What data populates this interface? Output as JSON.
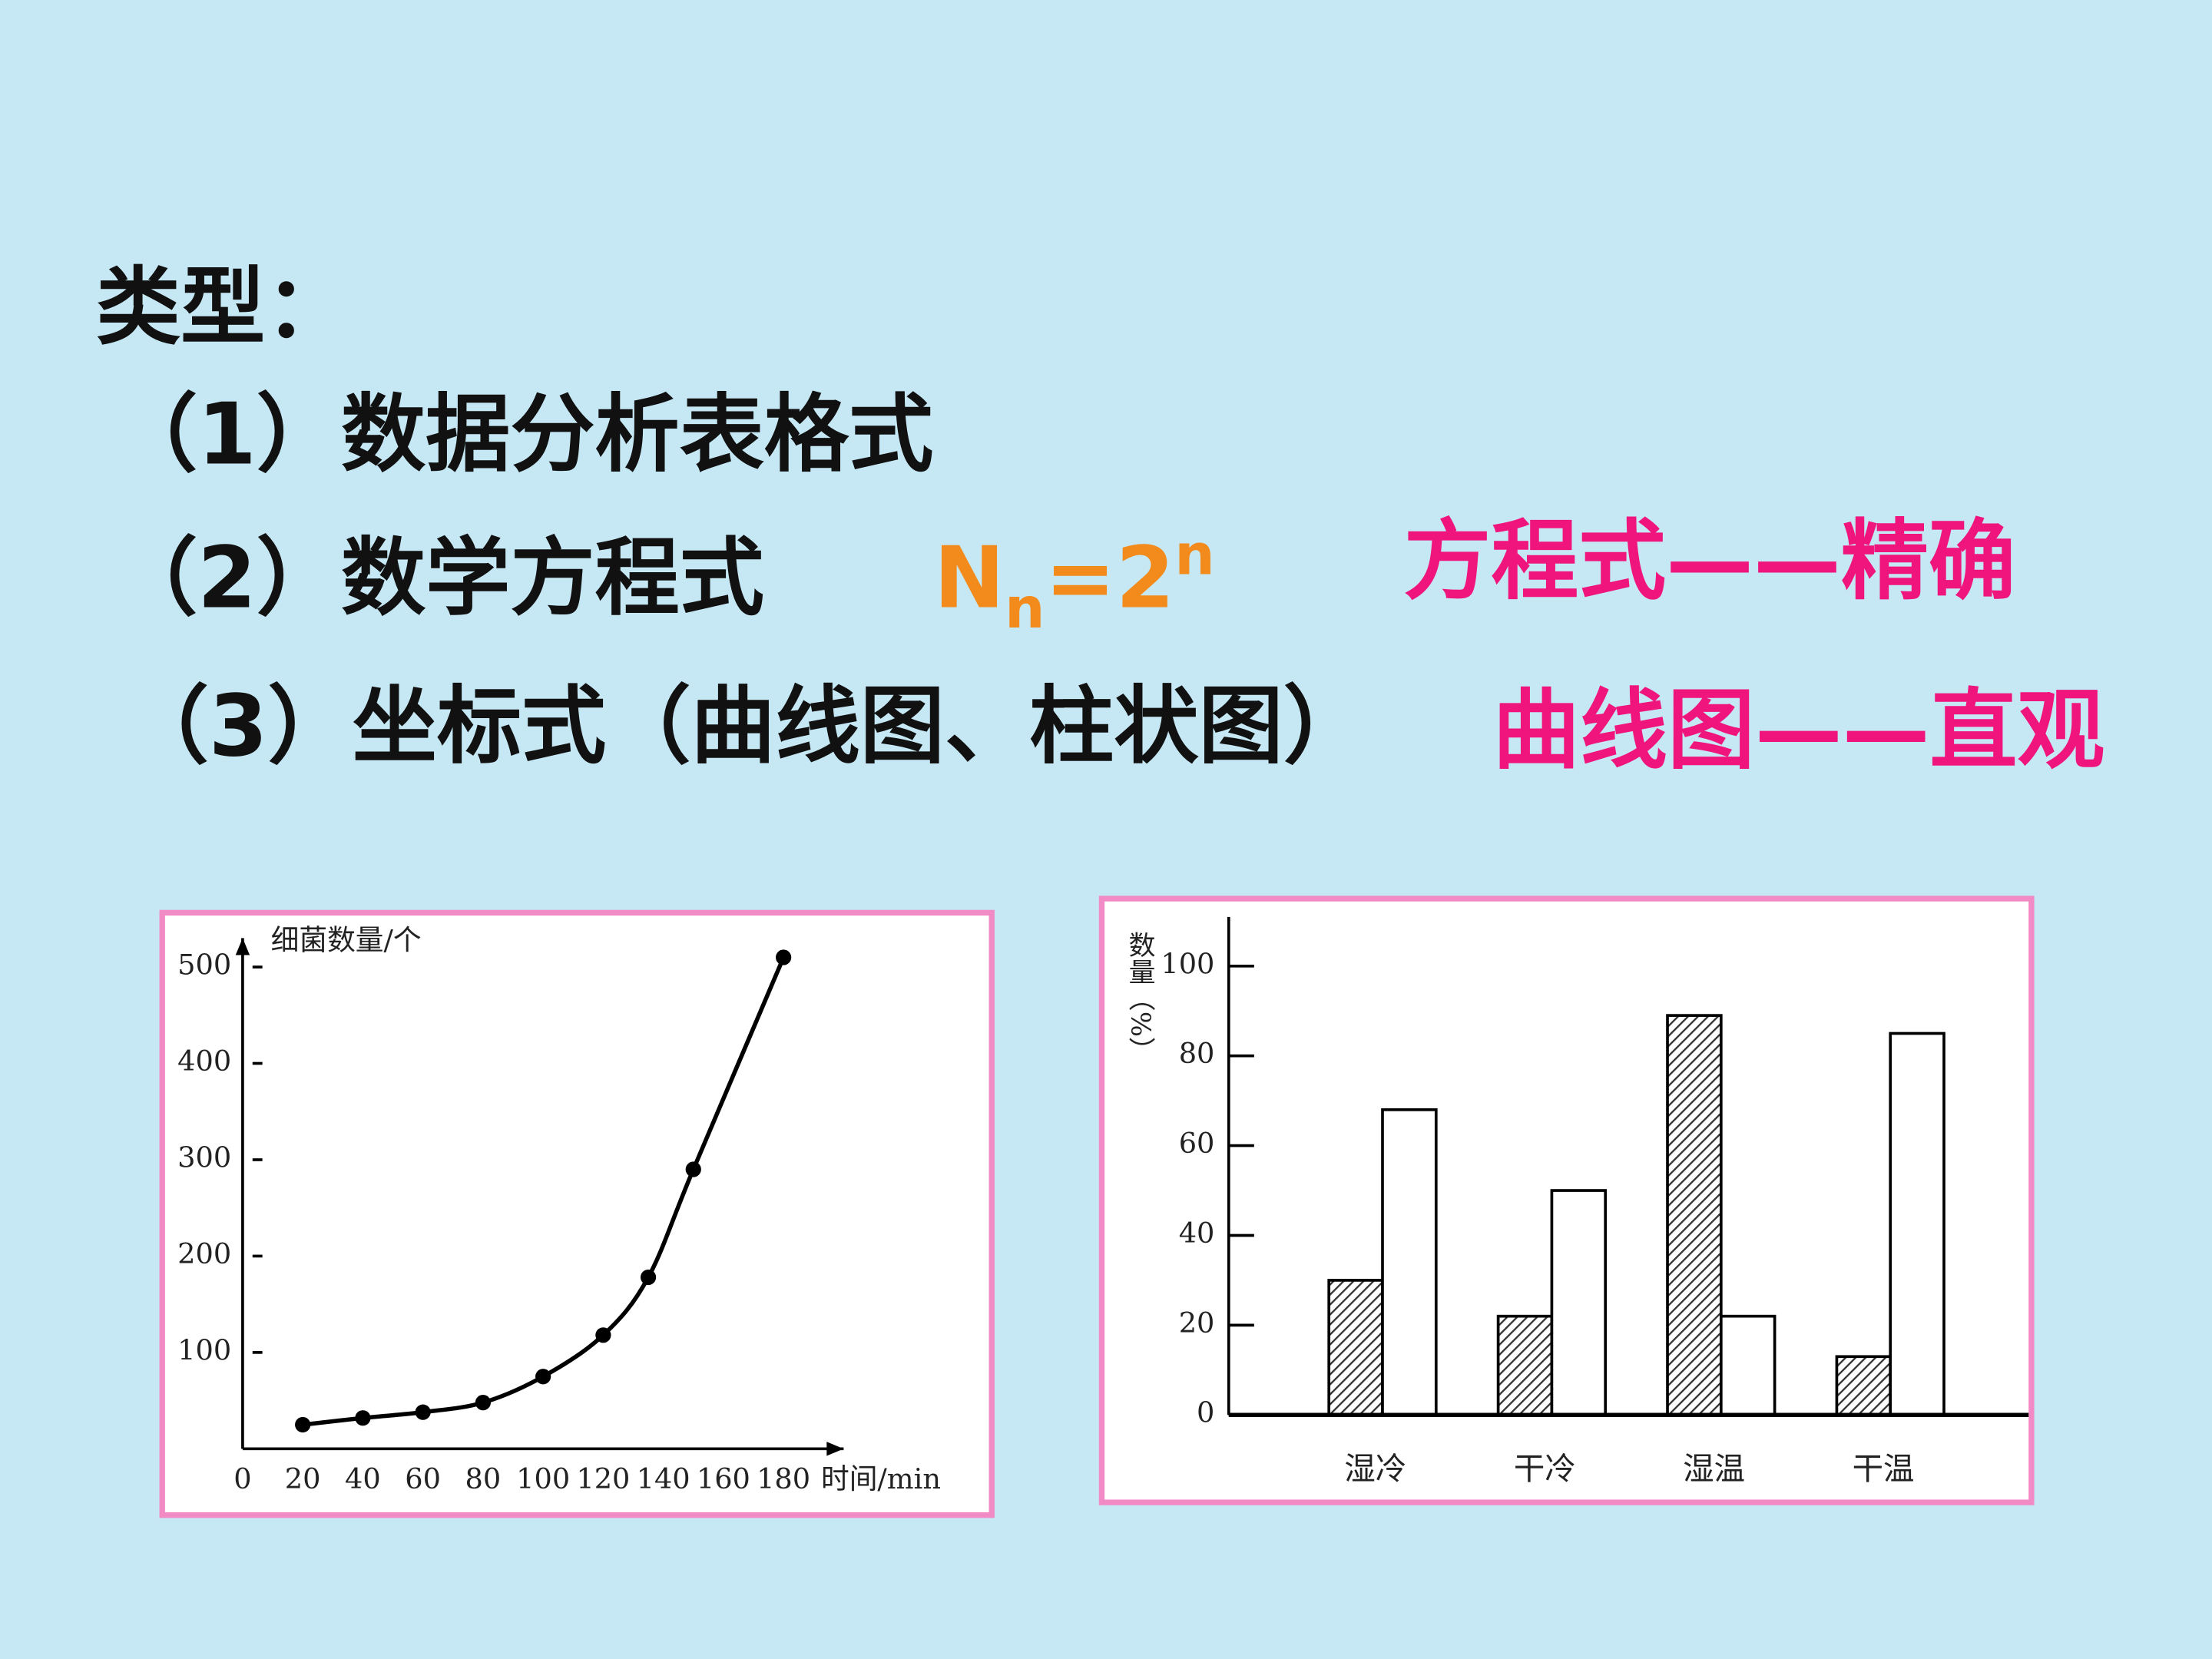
{
  "slide": {
    "title": "类型：",
    "items": [
      "（1）数据分析表格式",
      "（2）数学方程式",
      "（3）坐标式（曲线图、柱状图）"
    ],
    "formula": {
      "base": "N",
      "sub": "n",
      "mid": "=2",
      "sup": "n"
    },
    "notes": [
      "方程式——精确",
      "曲线图——直观"
    ]
  },
  "chart_data": [
    {
      "type": "line",
      "y_label": "细菌数量/个",
      "x_label": "时间/min",
      "x": [
        20,
        40,
        60,
        80,
        100,
        120,
        135,
        150,
        180
      ],
      "series": [
        {
          "color": "#000000",
          "values": [
            25,
            32,
            38,
            48,
            75,
            118,
            178,
            290,
            510
          ]
        }
      ],
      "xlim": [
        0,
        200
      ],
      "ylim": [
        0,
        530
      ],
      "xticks": [
        0,
        20,
        40,
        60,
        80,
        100,
        120,
        140,
        160,
        180
      ],
      "yticks": [
        100,
        200,
        300,
        400,
        500
      ],
      "markers": true
    },
    {
      "type": "bar",
      "y_label": "数量（%）",
      "categories": [
        "湿冷",
        "干冷",
        "湿温",
        "干温"
      ],
      "series": [
        {
          "color": "#333333",
          "hatch": true,
          "values": [
            30,
            22,
            89,
            13
          ]
        },
        {
          "color": "#ffffff",
          "values": [
            68,
            50,
            22,
            85
          ]
        }
      ],
      "ylim": [
        0,
        110
      ],
      "yticks": [
        0,
        20,
        40,
        60,
        80,
        100
      ]
    }
  ]
}
